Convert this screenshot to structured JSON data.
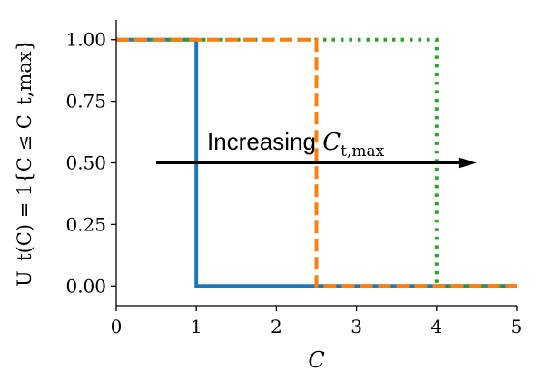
{
  "chart_data": {
    "type": "line",
    "xlabel": "C",
    "ylabel": "U_t(C) = 1{C ≤ C_t,max}",
    "xlim": [
      0,
      5
    ],
    "ylim": [
      -0.08,
      1.08
    ],
    "xticks": [
      "0",
      "1",
      "2",
      "3",
      "4",
      "5"
    ],
    "yticks": [
      "0.00",
      "0.25",
      "0.50",
      "0.75",
      "1.00"
    ],
    "grid": false,
    "series": [
      {
        "color": "#1f77b4",
        "style": "solid",
        "x": [
          0,
          1,
          1,
          5
        ],
        "y": [
          1,
          1,
          0,
          0
        ]
      },
      {
        "color": "#ff7f0e",
        "style": "dashed",
        "x": [
          0,
          2.5,
          2.5,
          5
        ],
        "y": [
          1,
          1,
          0,
          0
        ]
      },
      {
        "color": "#2ca02c",
        "style": "dotted",
        "x": [
          0,
          4,
          4,
          5
        ],
        "y": [
          1,
          1,
          0,
          0
        ]
      }
    ],
    "annotation": {
      "text": "Increasing",
      "math_main": "C",
      "math_sub": "t,max",
      "arrow_from": [
        0.5,
        0.5
      ],
      "arrow_to": [
        4.5,
        0.5
      ]
    }
  }
}
